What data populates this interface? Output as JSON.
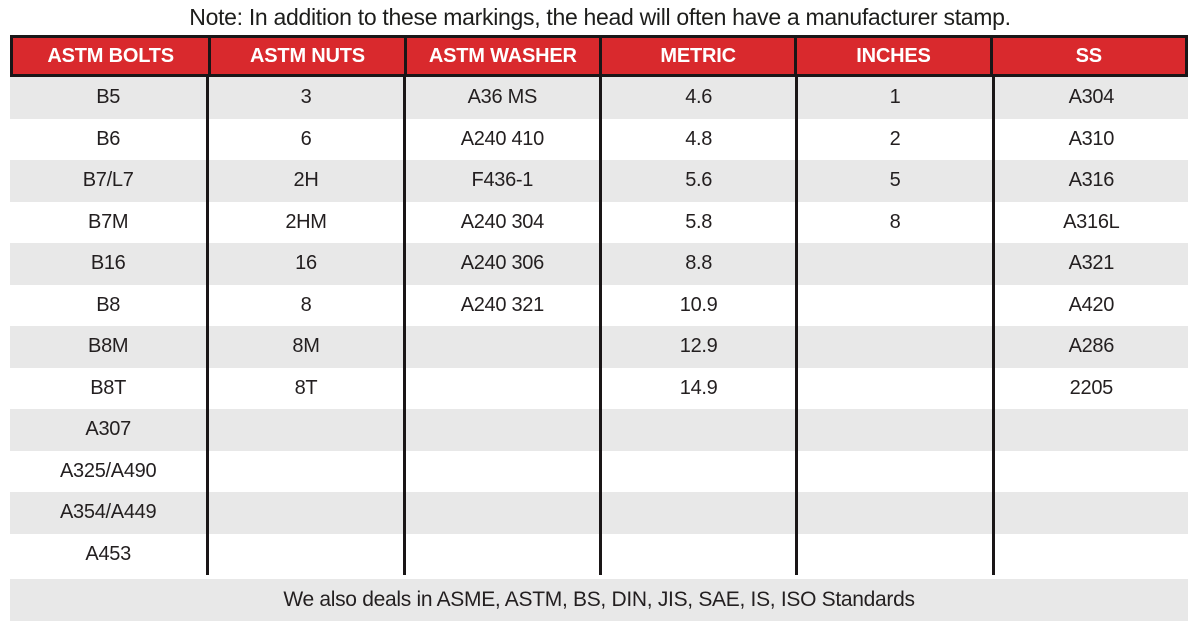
{
  "note": "Note: In addition to these markings, the head will often have a manufacturer stamp.",
  "table": {
    "columns": [
      "ASTM BOLTS",
      "ASTM NUTS",
      "ASTM WASHER",
      "METRIC",
      "INCHES",
      "SS"
    ],
    "rows": [
      [
        "B5",
        "3",
        "A36 MS",
        "4.6",
        "1",
        "A304"
      ],
      [
        "B6",
        "6",
        "A240 410",
        "4.8",
        "2",
        "A310"
      ],
      [
        "B7/L7",
        "2H",
        "F436-1",
        "5.6",
        "5",
        "A316"
      ],
      [
        "B7M",
        "2HM",
        "A240 304",
        "5.8",
        "8",
        "A316L"
      ],
      [
        "B16",
        "16",
        "A240 306",
        "8.8",
        "",
        "A321"
      ],
      [
        "B8",
        "8",
        "A240 321",
        "10.9",
        "",
        "A420"
      ],
      [
        "B8M",
        "8M",
        "",
        "12.9",
        "",
        "A286"
      ],
      [
        "B8T",
        "8T",
        "",
        "14.9",
        "",
        "2205"
      ],
      [
        "A307",
        "",
        "",
        "",
        "",
        ""
      ],
      [
        "A325/A490",
        "",
        "",
        "",
        "",
        ""
      ],
      [
        "A354/A449",
        "",
        "",
        "",
        "",
        ""
      ],
      [
        "A453",
        "",
        "",
        "",
        "",
        ""
      ]
    ]
  },
  "footer": "We also deals in ASME, ASTM, BS, DIN, JIS, SAE, IS, ISO Standards",
  "colors": {
    "header_bg": "#d9292d",
    "header_text": "#ffffff",
    "stripe": "#e8e8e8",
    "border": "#1a1617",
    "text": "#231f20"
  }
}
